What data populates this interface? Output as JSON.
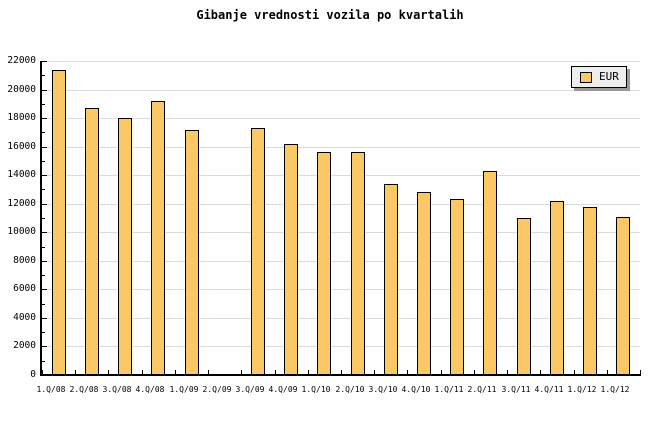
{
  "legend": {
    "label": "EUR"
  },
  "colors": {
    "background": "#ffffff",
    "bar_fill": "#fcc866",
    "bar_border": "#000000",
    "grid": "#dcdcdc",
    "axis": "#000000",
    "legend_bg": "#ededed",
    "legend_shadow": "#999999",
    "text": "#000000"
  },
  "chart_data": {
    "type": "bar",
    "title": "Gibanje vrednosti vozila po kvartalih",
    "categories": [
      "1.Q/08",
      "2.Q/08",
      "3.Q/08",
      "4.Q/08",
      "1.Q/09",
      "2.Q/09",
      "3.Q/09",
      "4.Q/09",
      "1.Q/10",
      "2.Q/10",
      "3.Q/10",
      "4.Q/10",
      "1.Q/11",
      "2.Q/11",
      "3.Q/11",
      "4.Q/11",
      "1.Q/12",
      "1.Q/12"
    ],
    "series": [
      {
        "name": "EUR",
        "values": [
          21400,
          18700,
          18000,
          19200,
          17200,
          null,
          17300,
          16200,
          15600,
          15600,
          13400,
          12800,
          12300,
          14300,
          11000,
          12200,
          11800,
          11100
        ]
      }
    ],
    "xlabel": "",
    "ylabel": "",
    "ylim": [
      0,
      22000
    ],
    "ytick_step": 2000,
    "ytick_minor_step": 1000,
    "ytick_labels": [
      "0",
      "2000",
      "4000",
      "6000",
      "8000",
      "10000",
      "12000",
      "14000",
      "16000",
      "18000",
      "20000",
      "22000"
    ],
    "grid": "horizontal",
    "legend_position": "top-right"
  }
}
